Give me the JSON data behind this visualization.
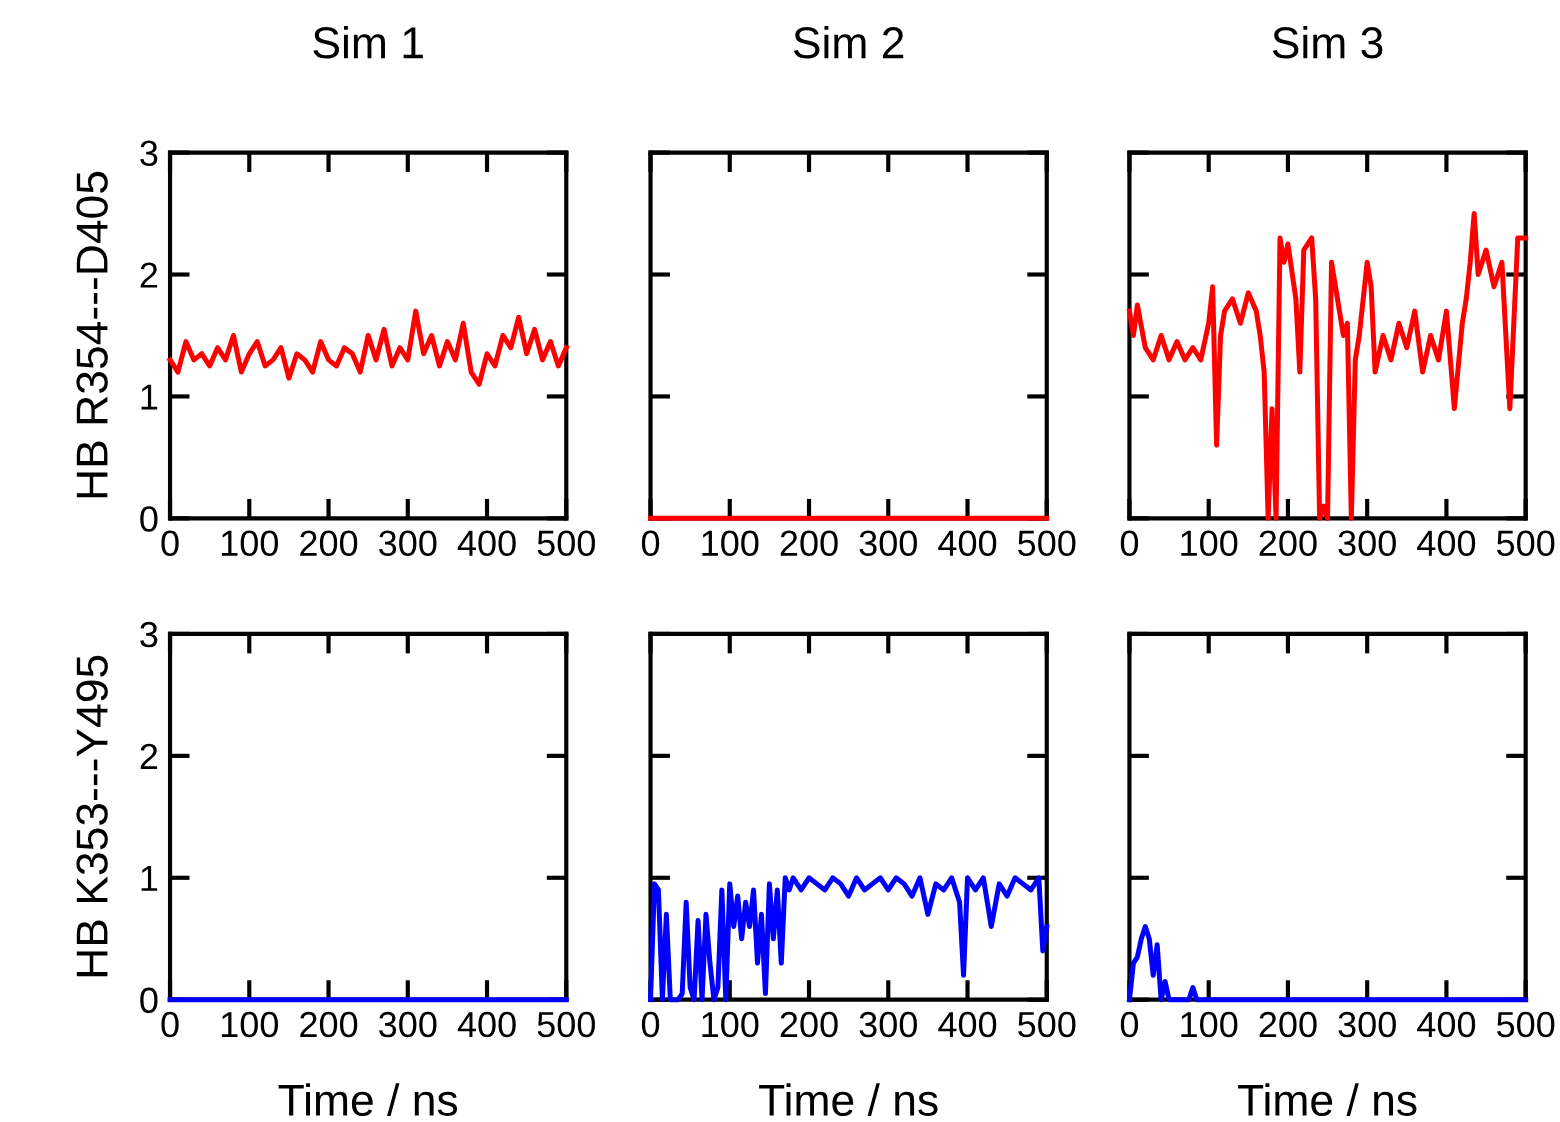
{
  "chart_data": [
    {
      "type": "line",
      "title": "Sim 1",
      "ylabel": "HB R354---D405",
      "xlim": [
        0,
        500
      ],
      "xticks": [
        0,
        100,
        200,
        300,
        400,
        500
      ],
      "ylim": [
        0,
        3
      ],
      "yticks": [
        0,
        1,
        2,
        3
      ],
      "x": [
        0,
        10,
        20,
        30,
        40,
        50,
        60,
        70,
        80,
        90,
        100,
        110,
        120,
        130,
        140,
        150,
        160,
        170,
        180,
        190,
        200,
        210,
        220,
        230,
        240,
        250,
        260,
        270,
        280,
        290,
        300,
        310,
        320,
        330,
        340,
        350,
        360,
        370,
        380,
        390,
        400,
        410,
        420,
        430,
        440,
        450,
        460,
        470,
        480,
        490,
        500
      ],
      "series": [
        {
          "color": "#ff0000",
          "values": [
            1.3,
            1.2,
            1.45,
            1.3,
            1.35,
            1.25,
            1.4,
            1.3,
            1.5,
            1.2,
            1.35,
            1.45,
            1.25,
            1.3,
            1.4,
            1.15,
            1.35,
            1.3,
            1.2,
            1.45,
            1.3,
            1.25,
            1.4,
            1.35,
            1.2,
            1.5,
            1.3,
            1.55,
            1.25,
            1.4,
            1.3,
            1.7,
            1.35,
            1.5,
            1.25,
            1.45,
            1.3,
            1.6,
            1.2,
            1.1,
            1.35,
            1.25,
            1.5,
            1.4,
            1.65,
            1.35,
            1.55,
            1.3,
            1.45,
            1.25,
            1.4
          ]
        }
      ]
    },
    {
      "type": "line",
      "title": "Sim 2",
      "xlim": [
        0,
        500
      ],
      "xticks": [
        0,
        100,
        200,
        300,
        400,
        500
      ],
      "ylim": [
        0,
        3
      ],
      "yticks": [
        0,
        1,
        2,
        3
      ],
      "tick_labels": "x",
      "x": [
        0,
        500
      ],
      "series": [
        {
          "color": "#ff0000",
          "values": [
            0,
            0
          ]
        }
      ]
    },
    {
      "type": "line",
      "title": "Sim 3",
      "xlim": [
        0,
        500
      ],
      "xticks": [
        0,
        100,
        200,
        300,
        400,
        500
      ],
      "ylim": [
        0,
        3
      ],
      "yticks": [
        0,
        1,
        2,
        3
      ],
      "tick_labels": "x",
      "x": [
        0,
        5,
        10,
        20,
        30,
        40,
        50,
        60,
        70,
        80,
        90,
        100,
        105,
        110,
        115,
        120,
        130,
        140,
        150,
        160,
        165,
        170,
        175,
        180,
        185,
        190,
        195,
        200,
        210,
        215,
        220,
        230,
        235,
        240,
        245,
        250,
        255,
        260,
        270,
        275,
        280,
        285,
        290,
        300,
        305,
        310,
        320,
        330,
        340,
        350,
        360,
        370,
        380,
        390,
        400,
        410,
        420,
        425,
        430,
        435,
        440,
        450,
        460,
        470,
        480,
        485,
        490,
        500
      ],
      "series": [
        {
          "color": "#ff0000",
          "values": [
            1.7,
            1.5,
            1.75,
            1.4,
            1.3,
            1.5,
            1.3,
            1.45,
            1.3,
            1.4,
            1.3,
            1.6,
            1.9,
            0.6,
            1.5,
            1.7,
            1.8,
            1.6,
            1.85,
            1.7,
            1.5,
            1.2,
            0,
            0.9,
            0,
            2.3,
            2.1,
            2.25,
            1.8,
            1.2,
            2.2,
            2.3,
            1.8,
            0,
            0.1,
            0,
            2.1,
            1.9,
            1.5,
            1.6,
            0,
            1.3,
            1.5,
            2.1,
            1.9,
            1.2,
            1.5,
            1.3,
            1.6,
            1.4,
            1.7,
            1.2,
            1.5,
            1.3,
            1.7,
            0.9,
            1.6,
            1.8,
            2.1,
            2.5,
            2.0,
            2.2,
            1.9,
            2.1,
            0.9,
            1.6,
            2.3,
            2.3
          ]
        }
      ]
    },
    {
      "type": "line",
      "ylabel": "HB K353---Y495",
      "xlabel": "Time / ns",
      "xlim": [
        0,
        500
      ],
      "xticks": [
        0,
        100,
        200,
        300,
        400,
        500
      ],
      "ylim": [
        0,
        3
      ],
      "yticks": [
        0,
        1,
        2,
        3
      ],
      "x": [
        0,
        500
      ],
      "series": [
        {
          "color": "#0000ff",
          "values": [
            0,
            0
          ]
        }
      ]
    },
    {
      "type": "line",
      "xlabel": "Time / ns",
      "xlim": [
        0,
        500
      ],
      "xticks": [
        0,
        100,
        200,
        300,
        400,
        500
      ],
      "ylim": [
        0,
        3
      ],
      "yticks": [
        0,
        1,
        2,
        3
      ],
      "tick_labels": "x",
      "x": [
        0,
        5,
        10,
        15,
        20,
        25,
        30,
        35,
        40,
        45,
        50,
        55,
        60,
        65,
        70,
        75,
        80,
        85,
        90,
        95,
        100,
        105,
        110,
        115,
        120,
        125,
        130,
        135,
        140,
        145,
        150,
        155,
        160,
        165,
        170,
        175,
        180,
        190,
        200,
        210,
        220,
        230,
        240,
        250,
        260,
        270,
        280,
        290,
        300,
        310,
        320,
        330,
        340,
        350,
        360,
        370,
        380,
        390,
        395,
        400,
        410,
        420,
        430,
        440,
        450,
        460,
        470,
        480,
        490,
        495,
        500
      ],
      "series": [
        {
          "color": "#0000ff",
          "values": [
            0,
            0.95,
            0.9,
            0,
            0.7,
            0,
            0,
            0,
            0.05,
            0.8,
            0.1,
            0,
            0.65,
            0,
            0.7,
            0.3,
            0,
            0.1,
            0.9,
            0,
            0.95,
            0.6,
            0.85,
            0.5,
            0.8,
            0.6,
            0.9,
            0.3,
            0.7,
            0.05,
            0.95,
            0.5,
            0.9,
            0.3,
            1.0,
            0.9,
            1.0,
            0.9,
            1.0,
            0.95,
            0.9,
            1.0,
            0.95,
            0.85,
            1.0,
            0.9,
            0.95,
            1.0,
            0.9,
            1.0,
            0.95,
            0.85,
            1.0,
            0.7,
            0.95,
            0.9,
            1.0,
            0.8,
            0.2,
            1.0,
            0.9,
            1.0,
            0.6,
            0.95,
            0.85,
            1.0,
            0.95,
            0.9,
            1.0,
            0.4,
            0.6
          ]
        }
      ]
    },
    {
      "type": "line",
      "xlabel": "Time / ns",
      "xlim": [
        0,
        500
      ],
      "xticks": [
        0,
        100,
        200,
        300,
        400,
        500
      ],
      "ylim": [
        0,
        3
      ],
      "yticks": [
        0,
        1,
        2,
        3
      ],
      "tick_labels": "x",
      "x": [
        0,
        5,
        10,
        15,
        20,
        25,
        30,
        35,
        40,
        45,
        50,
        55,
        60,
        75,
        80,
        85,
        90,
        100,
        500
      ],
      "series": [
        {
          "color": "#0000ff",
          "values": [
            0,
            0.3,
            0.35,
            0.5,
            0.6,
            0.5,
            0.2,
            0.45,
            0,
            0.15,
            0,
            0,
            0,
            0,
            0.1,
            0,
            0,
            0,
            0
          ]
        }
      ]
    }
  ]
}
